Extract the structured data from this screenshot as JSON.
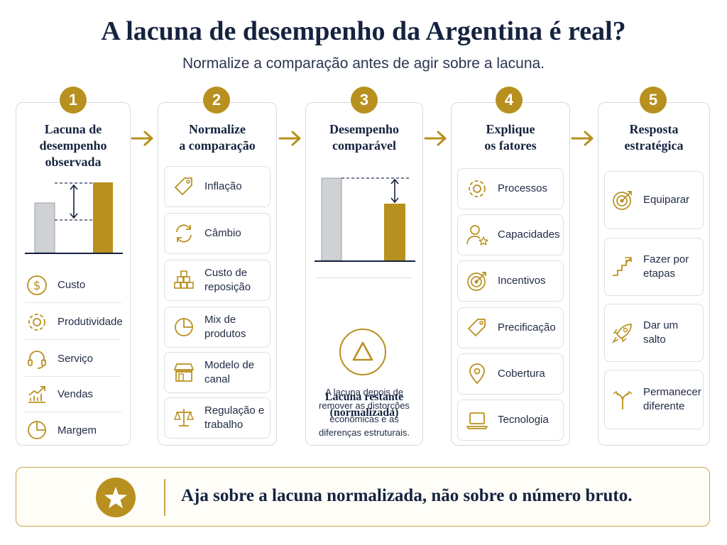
{
  "title": "A lacuna de desempenho da Argentina é real?",
  "subtitle": "Normalize a comparação antes de agir sobre a lacuna.",
  "columns": [
    {
      "number": "1",
      "title_lines": [
        "Lacuna de",
        "desempenho",
        "observada"
      ],
      "items": [
        {
          "label": "Custo",
          "icon": "dollar-coin-icon"
        },
        {
          "label": "Produtividade",
          "icon": "gear-icon"
        },
        {
          "label": "Serviço",
          "icon": "headset-icon"
        },
        {
          "label": "Vendas",
          "icon": "chart-trend-icon"
        },
        {
          "label": "Margem",
          "icon": "pie-chart-icon"
        }
      ]
    },
    {
      "number": "2",
      "title_lines": [
        "Normalize",
        "a comparação"
      ],
      "items": [
        {
          "lines": [
            "Inflação"
          ],
          "icon": "price-tag-icon"
        },
        {
          "lines": [
            "Câmbio"
          ],
          "icon": "exchange-arrows-icon"
        },
        {
          "lines": [
            "Custo de",
            "reposição"
          ],
          "icon": "stacked-boxes-icon"
        },
        {
          "lines": [
            "Mix de",
            "produtos"
          ],
          "icon": "pie-chart-icon"
        },
        {
          "lines": [
            "Modelo de",
            "canal"
          ],
          "icon": "storefront-icon"
        },
        {
          "lines": [
            "Regulação e",
            "trabalho"
          ],
          "icon": "scales-icon"
        }
      ]
    },
    {
      "number": "3",
      "title_lines": [
        "Desempenho",
        "comparável"
      ],
      "remaining_title_lines": [
        "Lacuna restante",
        "(normalizada)"
      ],
      "remaining_desc_lines": [
        "A lacuna depois de",
        "remover as distorções",
        "econômicas e as",
        "diferenças estruturais."
      ]
    },
    {
      "number": "4",
      "title_lines": [
        "Explique",
        "os fatores"
      ],
      "items": [
        {
          "lines": [
            "Processos"
          ],
          "icon": "gear-icon"
        },
        {
          "lines": [
            "Capacidades"
          ],
          "icon": "person-star-icon"
        },
        {
          "lines": [
            "Incentivos"
          ],
          "icon": "target-icon"
        },
        {
          "lines": [
            "Precificação"
          ],
          "icon": "price-tag-icon"
        },
        {
          "lines": [
            "Cobertura"
          ],
          "icon": "map-pin-icon"
        },
        {
          "lines": [
            "Tecnologia"
          ],
          "icon": "laptop-icon"
        }
      ]
    },
    {
      "number": "5",
      "title_lines": [
        "Resposta",
        "estratégica"
      ],
      "items": [
        {
          "lines": [
            "Equiparar"
          ],
          "icon": "target-arrow-icon"
        },
        {
          "lines": [
            "Fazer por",
            "etapas"
          ],
          "icon": "stairs-icon"
        },
        {
          "lines": [
            "Dar um salto"
          ],
          "icon": "rocket-icon"
        },
        {
          "lines": [
            "Permanecer",
            "diferente"
          ],
          "icon": "split-arrow-icon"
        }
      ]
    }
  ],
  "bottom_message": "Aja sobre a lacuna normalizada, não sobre o número bruto.",
  "colors": {
    "accent": "#b8901f",
    "navy": "#15233f",
    "gray_bar": "#cfd1d4",
    "border": "#d6d9df"
  }
}
